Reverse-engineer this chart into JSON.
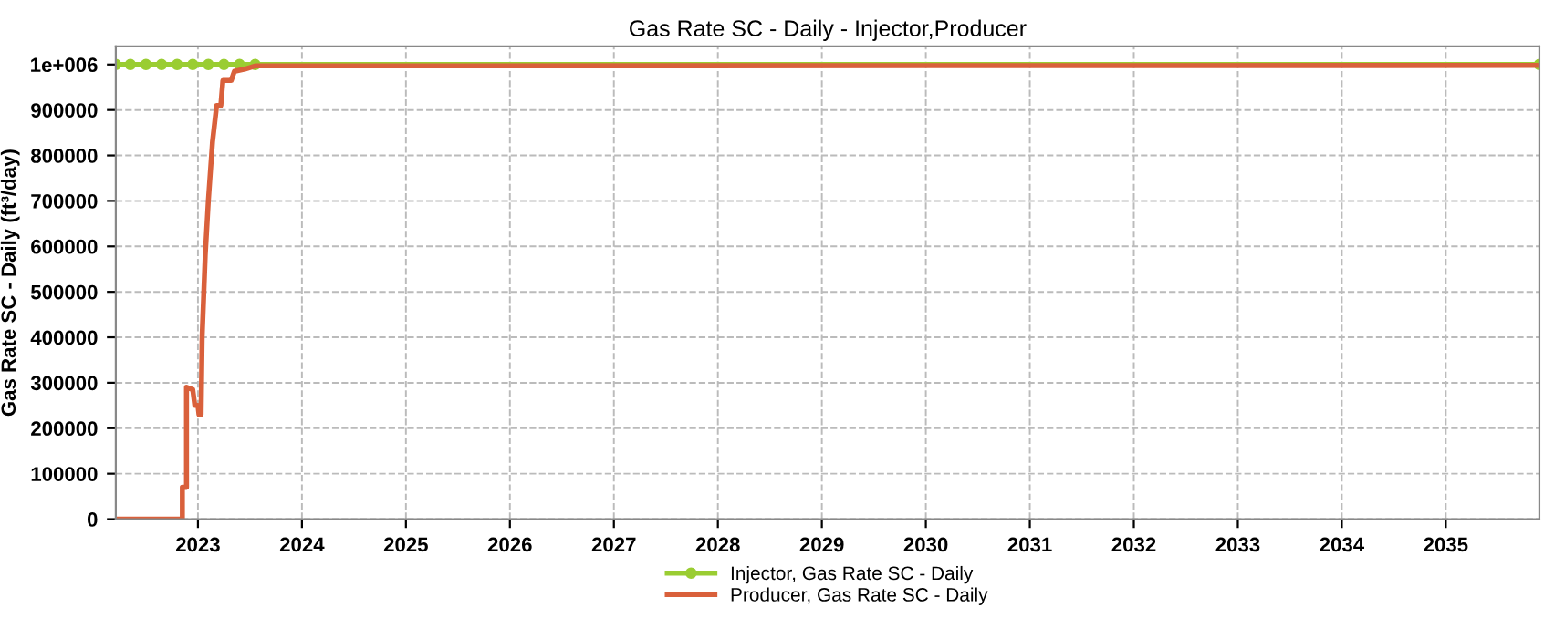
{
  "chart_data": {
    "type": "line",
    "title": "Gas Rate SC - Daily - Injector,Producer",
    "ylabel": "Gas Rate SC - Daily (ft³/day)",
    "xlim": [
      2022.21,
      2035.9
    ],
    "xticks": [
      2023,
      2024,
      2025,
      2026,
      2027,
      2028,
      2029,
      2030,
      2031,
      2032,
      2033,
      2034,
      2035
    ],
    "ylim": [
      0,
      1040000
    ],
    "yticks": [
      0,
      100000,
      200000,
      300000,
      400000,
      500000,
      600000,
      700000,
      800000,
      900000,
      {
        "value": 1000000,
        "label": "1e+006"
      }
    ],
    "grid": true,
    "legend": "bottom",
    "series": [
      {
        "name": "Injector, Gas Rate SC - Daily",
        "color": "#9acd32",
        "marker": "circle",
        "x": [
          2022.21,
          2022.35,
          2022.5,
          2022.65,
          2022.8,
          2022.95,
          2023.1,
          2023.25,
          2023.4,
          2023.55,
          2035.9
        ],
        "values": [
          1000000,
          1000000,
          1000000,
          1000000,
          1000000,
          1000000,
          1000000,
          1000000,
          1000000,
          1000000,
          1000000
        ]
      },
      {
        "name": "Producer, Gas Rate SC - Daily",
        "color": "#d9603b",
        "marker": "none",
        "x": [
          2022.21,
          2022.85,
          2022.85,
          2022.89,
          2022.89,
          2022.95,
          2022.97,
          2023.0,
          2023.01,
          2023.03,
          2023.04,
          2023.07,
          2023.1,
          2023.14,
          2023.18,
          2023.22,
          2023.24,
          2023.32,
          2023.35,
          2023.45,
          2023.55,
          2035.9
        ],
        "values": [
          0,
          0,
          70000,
          70000,
          290000,
          285000,
          250000,
          250000,
          230000,
          230000,
          400000,
          580000,
          700000,
          830000,
          910000,
          910000,
          965000,
          965000,
          985000,
          990000,
          997000,
          998000
        ]
      }
    ]
  }
}
